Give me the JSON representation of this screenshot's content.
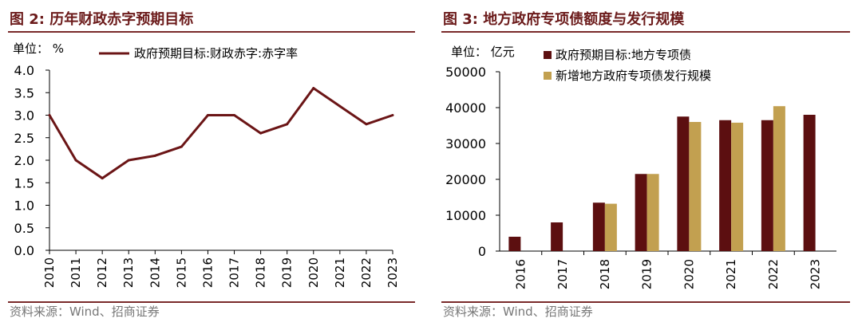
{
  "left": {
    "figure_title": "图 2:  历年财政赤字预期目标",
    "source": "资料来源：Wind、招商证券",
    "chart_data": {
      "type": "line",
      "unit_label": "单位： %",
      "x": [
        "2010",
        "2011",
        "2012",
        "2013",
        "2014",
        "2015",
        "2016",
        "2017",
        "2018",
        "2019",
        "2020",
        "2021",
        "2022",
        "2023"
      ],
      "series": [
        {
          "name": "政府预期目标:财政赤字:赤字率",
          "color": "#6b1516",
          "values": [
            3.0,
            2.0,
            1.6,
            2.0,
            2.1,
            2.3,
            3.0,
            3.0,
            2.6,
            2.8,
            3.6,
            3.2,
            2.8,
            3.0
          ]
        }
      ],
      "ylim": [
        0,
        4.0
      ],
      "yticks": [
        "0.0",
        "0.5",
        "1.0",
        "1.5",
        "2.0",
        "2.5",
        "3.0",
        "3.5",
        "4.0"
      ],
      "grid": false,
      "legend": "top"
    }
  },
  "right": {
    "figure_title": "图 3:  地方政府专项债额度与发行规模",
    "source": "资料来源：Wind、招商证券",
    "chart_data": {
      "type": "bar",
      "unit_label": "单位： 亿元",
      "categories": [
        "2016",
        "2017",
        "2018",
        "2019",
        "2020",
        "2021",
        "2022",
        "2023"
      ],
      "series": [
        {
          "name": "政府预期目标:地方专项债",
          "color": "#5c0f10",
          "values": [
            4000,
            8000,
            13500,
            21500,
            37500,
            36500,
            36500,
            38000
          ]
        },
        {
          "name": "新增地方政府专项债发行规模",
          "color": "#c2a050",
          "values": [
            null,
            null,
            13200,
            21500,
            36000,
            35800,
            40400,
            null
          ]
        }
      ],
      "ylim": [
        0,
        50000
      ],
      "yticks": [
        "0",
        "10000",
        "20000",
        "30000",
        "40000",
        "50000"
      ],
      "grid": false,
      "legend": "top-left"
    }
  }
}
